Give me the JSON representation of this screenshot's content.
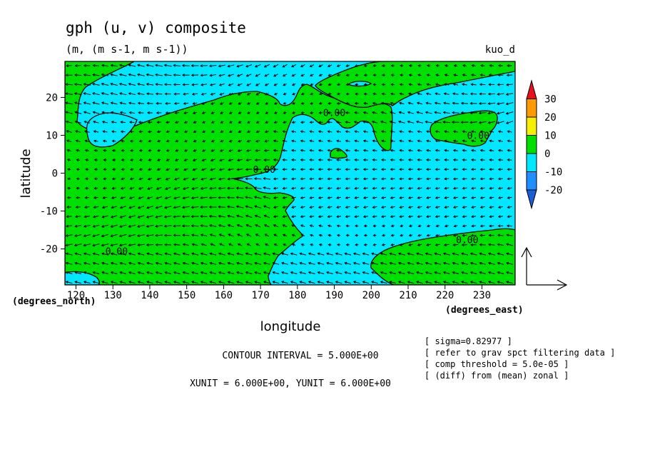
{
  "chart_data": {
    "type": "contour",
    "title": "gph (u, v) composite",
    "subtitle": "(m, (m s-1, m s-1))",
    "tag": "kuo_d",
    "xlabel": "longitude",
    "ylabel": "latitude",
    "xunit_label": "(degrees_east)",
    "yunit_label": "(degrees_north)",
    "xlim": [
      117,
      239
    ],
    "ylim": [
      -29.5,
      29.5
    ],
    "xticks": [
      120,
      130,
      140,
      150,
      160,
      170,
      180,
      190,
      200,
      210,
      220,
      230
    ],
    "yticks": [
      -20,
      -10,
      0,
      10,
      20
    ],
    "colorbar": {
      "levels": [
        30,
        20,
        10,
        0,
        -10,
        -20
      ],
      "colors": [
        "#e8121e",
        "#ff9a00",
        "#f5f000",
        "#00e000",
        "#00e7ff",
        "#1e90ff",
        "#1a5dd6"
      ]
    },
    "contour_labels": [
      {
        "text": "0.00",
        "x": 131,
        "y": -20.5
      },
      {
        "text": "0.00",
        "x": 190,
        "y": 16
      },
      {
        "text": "0.00",
        "x": 171,
        "y": 1
      },
      {
        "text": "0.00",
        "x": 229,
        "y": 10
      },
      {
        "text": "0.00",
        "x": 226,
        "y": -17.5
      }
    ],
    "fill_colors": {
      "positive": "#00e000",
      "negative": "#00e7ff"
    },
    "vector_reference": {
      "xunit": 6.0,
      "yunit": 6.0
    },
    "contour_interval_text": "CONTOUR INTERVAL = 5.000E+00",
    "unit_text": "XUNIT = 6.000E+00, YUNIT = 6.000E+00",
    "notes": [
      "[ sigma=0.82977 ]",
      "[ refer to grav spct filtering data ]",
      "[ comp threshold = 5.0e-05 ]",
      "[ (diff) from (mean) zonal ]"
    ]
  }
}
